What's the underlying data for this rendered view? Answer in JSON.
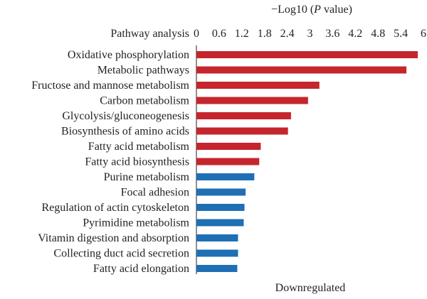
{
  "chart_data": {
    "type": "bar",
    "orientation": "horizontal",
    "title_top": "−Log10 (",
    "title_italic": "P",
    "title_rest": " value)",
    "category_header": "Pathway analysis",
    "caption": "Downregulated",
    "xlim": [
      0,
      6
    ],
    "ticks": [
      "0",
      "0.6",
      "1.2",
      "1.8",
      "2.4",
      "3",
      "3.6",
      "4.2",
      "4.8",
      "5.4",
      "6"
    ],
    "tick_values": [
      0,
      0.6,
      1.2,
      1.8,
      2.4,
      3,
      3.6,
      4.2,
      4.8,
      5.4,
      6
    ],
    "grid": false,
    "legend": "none",
    "colors": {
      "red": "#c5252c",
      "blue": "#1f6fb5"
    },
    "categories": [
      "Oxidative phosphorylation",
      "Metabolic pathways",
      "Fructose and mannose metabolism",
      "Carbon metabolism",
      "Glycolysis/gluconeogenesis",
      "Biosynthesis of amino acids",
      "Fatty acid metabolism",
      "Fatty acid biosynthesis",
      "Purine metabolism",
      "Focal adhesion",
      "Regulation of actin cytoskeleton",
      "Pyrimidine metabolism",
      "Vitamin digestion and absorption",
      "Collecting duct acid secretion",
      "Fatty acid elongation"
    ],
    "values": [
      5.85,
      5.55,
      3.25,
      2.95,
      2.5,
      2.42,
      1.7,
      1.66,
      1.53,
      1.3,
      1.27,
      1.25,
      1.1,
      1.1,
      1.08
    ],
    "bar_colors": [
      "red",
      "red",
      "red",
      "red",
      "red",
      "red",
      "red",
      "red",
      "blue",
      "blue",
      "blue",
      "blue",
      "blue",
      "blue",
      "blue"
    ]
  }
}
